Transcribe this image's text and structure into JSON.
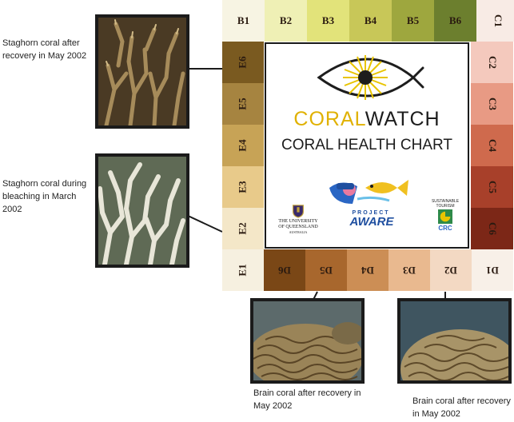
{
  "captions": {
    "staghorn_recovery": "Staghorn coral after recovery in May 2002",
    "staghorn_bleaching": "Staghorn coral during bleaching in March 2002",
    "brain_left": "Brain coral after recovery in May 2002",
    "brain_right": "Brain coral after recovery in May 2002"
  },
  "chart": {
    "top": [
      {
        "label": "B1",
        "color": "#f7f4e3"
      },
      {
        "label": "B2",
        "color": "#eff0b5"
      },
      {
        "label": "B3",
        "color": "#e2e37a"
      },
      {
        "label": "B4",
        "color": "#c8c758"
      },
      {
        "label": "B5",
        "color": "#9ea73e"
      },
      {
        "label": "B6",
        "color": "#6c7f2e"
      },
      {
        "label": "C1",
        "color": "#f8ebe5"
      }
    ],
    "left": [
      {
        "label": "E6",
        "color": "#7a5a20"
      },
      {
        "label": "E5",
        "color": "#a68440"
      },
      {
        "label": "E4",
        "color": "#c7a356"
      },
      {
        "label": "E3",
        "color": "#e8ca8a"
      },
      {
        "label": "E2",
        "color": "#f4e7c8"
      },
      {
        "label": "E1",
        "color": "#f6f0e0"
      }
    ],
    "right": [
      {
        "label": "C2",
        "color": "#f4c9bd"
      },
      {
        "label": "C3",
        "color": "#e89a84"
      },
      {
        "label": "C4",
        "color": "#cf6a4d"
      },
      {
        "label": "C5",
        "color": "#a8402a"
      },
      {
        "label": "C6",
        "color": "#7c2717"
      }
    ],
    "bottom": [
      {
        "label": "D6",
        "color": "#7a4716"
      },
      {
        "label": "D5",
        "color": "#a8672d"
      },
      {
        "label": "D4",
        "color": "#cc8e55"
      },
      {
        "label": "D3",
        "color": "#e9b98f"
      },
      {
        "label": "D2",
        "color": "#f3d9c3"
      },
      {
        "label": "D1",
        "color": "#f8f0e8"
      }
    ]
  },
  "center": {
    "brand_coral": "CORAL",
    "brand_watch": "WATCH",
    "subtitle": "CORAL HEALTH CHART",
    "uq_line1": "THE UNIVERSITY",
    "uq_line2": "OF QUEENSLAND",
    "uq_line3": "AUSTRALIA",
    "aware_line1": "PROJECT",
    "aware_line2": "AWARE",
    "crc_line1": "SUSTAINABLE",
    "crc_line2": "TOURISM",
    "crc_line3": "CRC"
  },
  "colors": {
    "coral_yellow": "#e0b100",
    "watch_dark": "#1d1d1d",
    "aware_blue": "#1f4fa0"
  }
}
